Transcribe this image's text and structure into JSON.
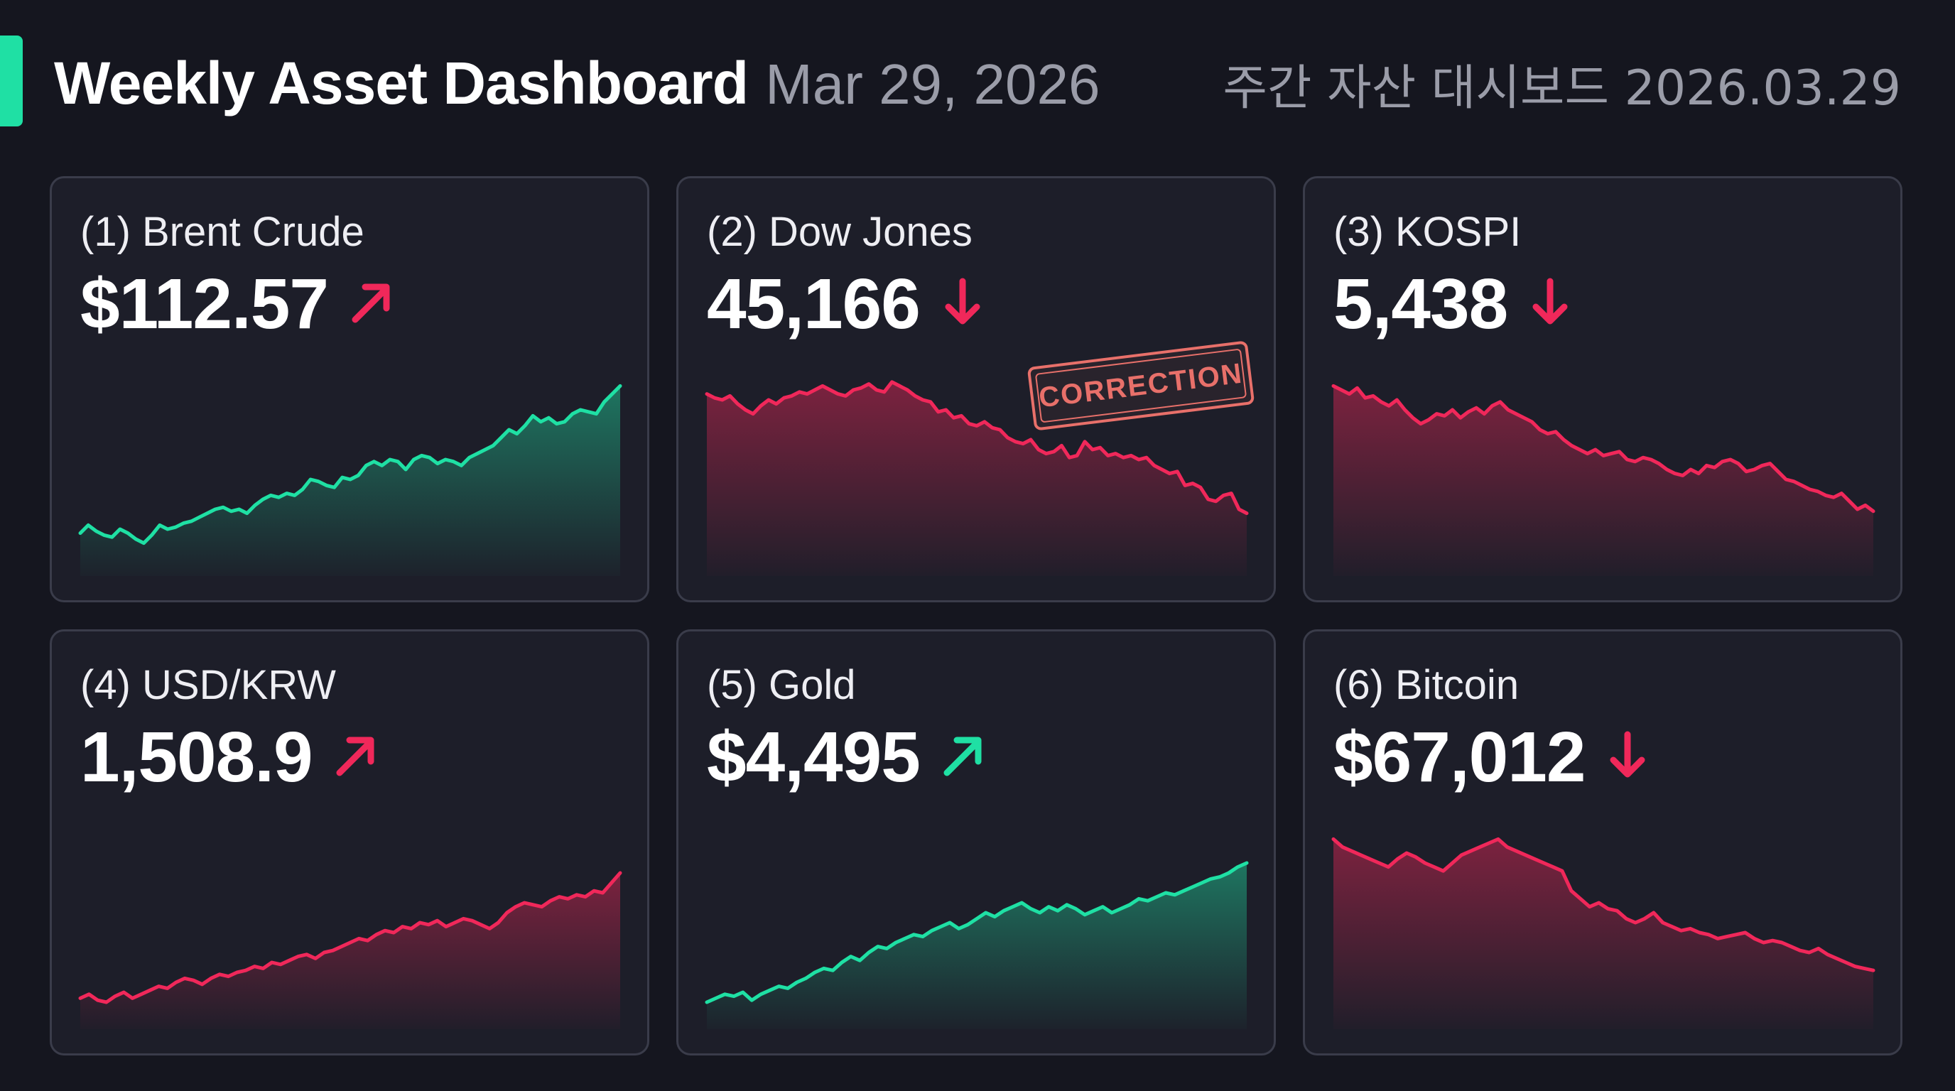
{
  "header": {
    "title": "Weekly Asset Dashboard",
    "date": "Mar 29, 2026",
    "korean_title": "주간 자산 대시보드 2026.03.29"
  },
  "colors": {
    "background": "#15161f",
    "card": "#1d1e29",
    "card_border": "#3a3c4a",
    "up_green": "#1fe0a4",
    "down_red": "#f0285a",
    "stamp": "#e8706a"
  },
  "cards": [
    {
      "label": "(1) Brent Crude",
      "value": "$112.57",
      "direction": "up-diagonal",
      "arrow_icon": "arrow-up-right-icon",
      "arrow_color": "#f0285a",
      "line_color": "#1fe0a4",
      "series": [
        18,
        22,
        19,
        17,
        16,
        20,
        18,
        15,
        13,
        17,
        22,
        20,
        21,
        23,
        24,
        26,
        28,
        30,
        31,
        29,
        30,
        28,
        32,
        35,
        37,
        36,
        38,
        37,
        40,
        45,
        44,
        42,
        41,
        46,
        45,
        47,
        52,
        54,
        52,
        55,
        54,
        50,
        55,
        57,
        56,
        53,
        55,
        54,
        52,
        56,
        58,
        60,
        62,
        66,
        70,
        68,
        72,
        77,
        74,
        76,
        73,
        74,
        78,
        80,
        79,
        78,
        84,
        88,
        92
      ],
      "stamp": ""
    },
    {
      "label": "(2) Dow Jones",
      "value": "45,166",
      "direction": "down",
      "arrow_icon": "arrow-down-icon",
      "arrow_color": "#f0285a",
      "line_color": "#f0285a",
      "series": [
        88,
        86,
        85,
        87,
        83,
        80,
        78,
        82,
        85,
        83,
        86,
        87,
        89,
        88,
        90,
        92,
        90,
        88,
        87,
        90,
        91,
        93,
        90,
        89,
        94,
        92,
        90,
        87,
        85,
        84,
        79,
        80,
        76,
        77,
        73,
        72,
        74,
        71,
        70,
        66,
        64,
        63,
        65,
        60,
        58,
        59,
        62,
        56,
        57,
        64,
        60,
        61,
        57,
        58,
        56,
        57,
        55,
        56,
        52,
        50,
        48,
        49,
        42,
        43,
        41,
        35,
        34,
        37,
        38,
        30,
        28
      ],
      "stamp": "CORRECTION"
    },
    {
      "label": "(3) KOSPI",
      "value": "5,438",
      "direction": "down",
      "arrow_icon": "arrow-down-icon",
      "arrow_color": "#f0285a",
      "line_color": "#f0285a",
      "series": [
        92,
        90,
        88,
        91,
        86,
        87,
        84,
        82,
        85,
        80,
        76,
        73,
        75,
        78,
        77,
        80,
        76,
        79,
        81,
        78,
        82,
        84,
        80,
        78,
        76,
        74,
        70,
        68,
        69,
        65,
        62,
        60,
        58,
        60,
        57,
        58,
        59,
        55,
        54,
        56,
        55,
        53,
        50,
        48,
        47,
        50,
        48,
        52,
        51,
        54,
        55,
        53,
        49,
        50,
        52,
        53,
        49,
        45,
        44,
        42,
        40,
        39,
        37,
        36,
        38,
        34,
        30,
        32,
        29
      ],
      "stamp": ""
    },
    {
      "label": "(4) USD/KRW",
      "value": "1,508.9",
      "direction": "up-diagonal",
      "arrow_icon": "arrow-up-right-icon",
      "arrow_color": "#f0285a",
      "line_color": "#f0285a",
      "series": [
        12,
        14,
        11,
        10,
        13,
        15,
        12,
        14,
        16,
        18,
        17,
        20,
        22,
        21,
        19,
        22,
        24,
        23,
        25,
        26,
        28,
        27,
        30,
        29,
        31,
        33,
        34,
        32,
        35,
        36,
        38,
        40,
        42,
        41,
        44,
        46,
        45,
        48,
        47,
        50,
        49,
        51,
        48,
        50,
        52,
        51,
        49,
        47,
        50,
        55,
        58,
        60,
        59,
        58,
        61,
        63,
        62,
        64,
        63,
        66,
        65,
        70,
        75
      ],
      "stamp": ""
    },
    {
      "label": "(5) Gold",
      "value": "$4,495",
      "direction": "up-diagonal",
      "arrow_icon": "arrow-up-right-icon",
      "arrow_color": "#1fe0a4",
      "line_color": "#1fe0a4",
      "series": [
        10,
        12,
        14,
        13,
        15,
        11,
        14,
        16,
        18,
        17,
        20,
        22,
        25,
        27,
        26,
        30,
        33,
        31,
        35,
        38,
        37,
        40,
        42,
        44,
        43,
        46,
        48,
        50,
        47,
        49,
        52,
        55,
        53,
        56,
        58,
        60,
        57,
        55,
        58,
        56,
        59,
        57,
        54,
        56,
        58,
        55,
        57,
        59,
        62,
        61,
        63,
        65,
        64,
        66,
        68,
        70,
        72,
        73,
        75,
        78,
        80
      ],
      "stamp": ""
    },
    {
      "label": "(6) Bitcoin",
      "value": "$67,012",
      "direction": "down",
      "arrow_icon": "arrow-down-icon",
      "arrow_color": "#f0285a",
      "line_color": "#f0285a",
      "series": [
        92,
        88,
        86,
        84,
        82,
        80,
        78,
        82,
        85,
        83,
        80,
        78,
        76,
        80,
        84,
        86,
        88,
        90,
        92,
        88,
        86,
        84,
        82,
        80,
        78,
        76,
        66,
        62,
        58,
        60,
        57,
        56,
        52,
        50,
        52,
        55,
        50,
        48,
        46,
        47,
        45,
        44,
        42,
        43,
        44,
        45,
        42,
        40,
        41,
        40,
        38,
        36,
        35,
        37,
        34,
        32,
        30,
        28,
        27,
        26
      ],
      "stamp": ""
    }
  ]
}
